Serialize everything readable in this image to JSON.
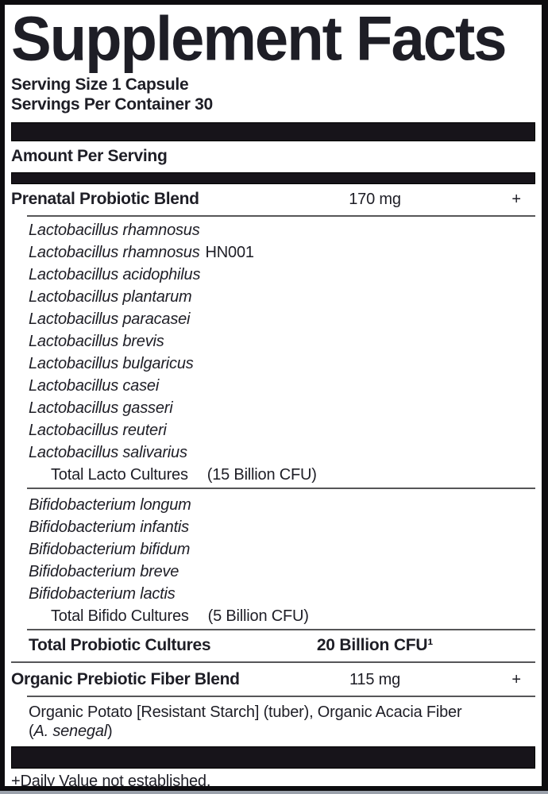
{
  "header": {
    "title": "Supplement Facts",
    "serving_size": "Serving Size 1 Capsule",
    "servings_per_container": "Servings Per Container 30"
  },
  "columns": {
    "amount_header": "Amount Per Serving"
  },
  "probiotic_blend": {
    "name": "Prenatal Probiotic Blend",
    "amount": "170 mg",
    "dv": "+",
    "lacto": [
      {
        "name": "Lactobacillus rhamnosus",
        "suffix": ""
      },
      {
        "name": "Lactobacillus rhamnosus",
        "suffix": "HN001"
      },
      {
        "name": "Lactobacillus acidophilus",
        "suffix": ""
      },
      {
        "name": "Lactobacillus plantarum",
        "suffix": ""
      },
      {
        "name": "Lactobacillus paracasei",
        "suffix": ""
      },
      {
        "name": "Lactobacillus brevis",
        "suffix": ""
      },
      {
        "name": "Lactobacillus bulgaricus",
        "suffix": ""
      },
      {
        "name": "Lactobacillus casei",
        "suffix": ""
      },
      {
        "name": "Lactobacillus gasseri",
        "suffix": ""
      },
      {
        "name": "Lactobacillus reuteri",
        "suffix": ""
      },
      {
        "name": "Lactobacillus salivarius",
        "suffix": ""
      }
    ],
    "lacto_total": {
      "label": "Total Lacto Cultures",
      "amount": "(15 Billion CFU)"
    },
    "bifido": [
      {
        "name": "Bifidobacterium longum",
        "suffix": ""
      },
      {
        "name": "Bifidobacterium infantis",
        "suffix": ""
      },
      {
        "name": "Bifidobacterium bifidum",
        "suffix": ""
      },
      {
        "name": "Bifidobacterium breve",
        "suffix": ""
      },
      {
        "name": "Bifidobacterium lactis",
        "suffix": ""
      }
    ],
    "bifido_total": {
      "label": "Total Bifido Cultures",
      "amount": "(5 Billion CFU)"
    }
  },
  "total_row": {
    "label": "Total Probiotic Cultures",
    "amount": "20 Billion CFU¹"
  },
  "fiber_blend": {
    "name": "Organic Prebiotic Fiber Blend",
    "amount": "115 mg",
    "dv": "+",
    "ingredients_line1": "Organic Potato [Resistant Starch] (tuber), Organic Acacia Fiber",
    "ingredients_line2_open": "(",
    "ingredients_line2_species": "A. senegal",
    "ingredients_line2_close": ")"
  },
  "footnote": "+Daily Value not established.",
  "colors": {
    "text": "#1e1e26",
    "bar": "#17141a",
    "rule": "#565658",
    "background": "#ffffff"
  }
}
